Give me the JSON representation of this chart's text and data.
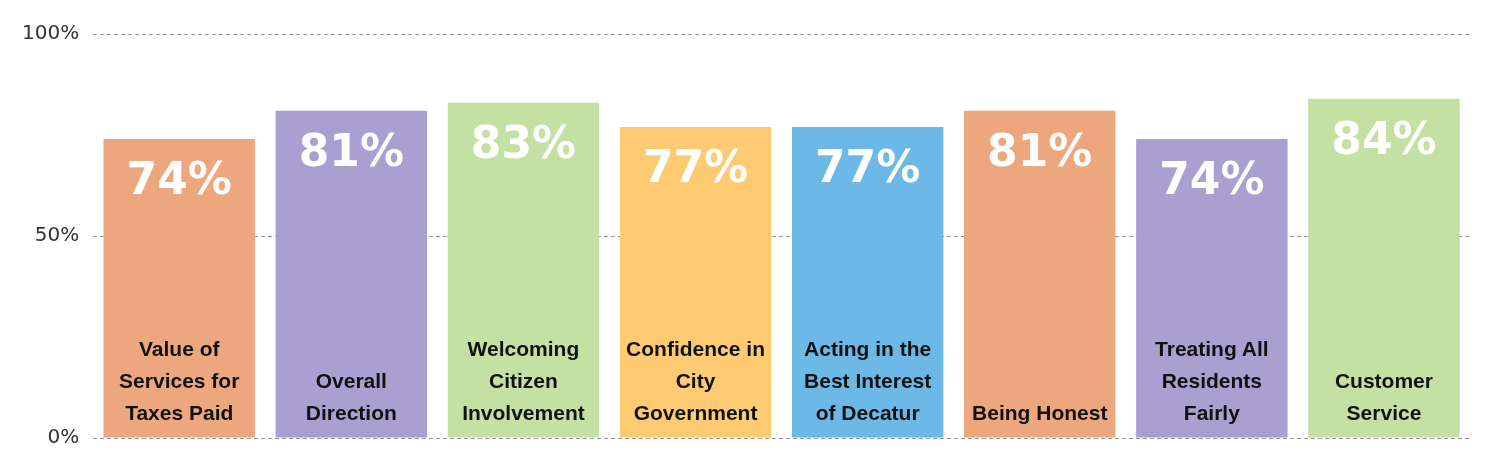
{
  "chart_data": {
    "type": "bar",
    "categories": [
      "Value of Services for Taxes Paid",
      "Overall Direction",
      "Welcoming Citizen Involvement",
      "Confidence in City Government",
      "Acting in the Best Interest of Decatur",
      "Being Honest",
      "Treating All Residents Fairly",
      "Customer Service"
    ],
    "values": [
      74,
      81,
      83,
      77,
      77,
      81,
      74,
      84
    ],
    "colors": [
      "#eca77f",
      "#a99fd0",
      "#c4e0a2",
      "#fecb72",
      "#6cb8e6",
      "#eca77f",
      "#a99fd0",
      "#c4e0a2"
    ],
    "ylim": [
      0,
      100
    ],
    "yticks": [
      {
        "value": 0,
        "label": "0%"
      },
      {
        "value": 50,
        "label": "50%"
      },
      {
        "value": 100,
        "label": "100%"
      }
    ],
    "value_labels": [
      "74%",
      "81%",
      "83%",
      "77%",
      "77%",
      "81%",
      "74%",
      "84%"
    ],
    "grid": "y",
    "line_style": "dashed"
  }
}
